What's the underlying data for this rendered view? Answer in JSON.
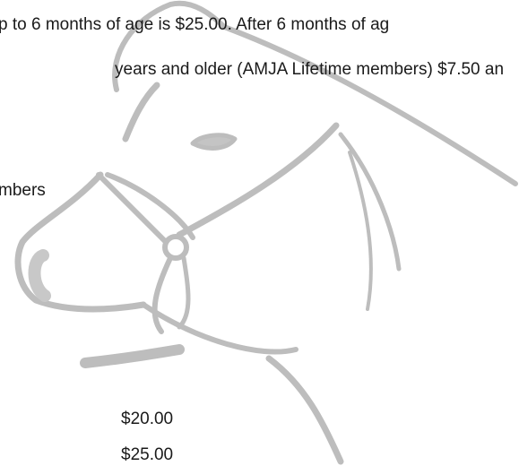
{
  "text_lines": [
    "p to 6 months of age is $25.00. After 6 months of ag",
    "years and older (AMJA Lifetime members) $7.50 an",
    "mbers"
  ],
  "fees": [
    "$20.00",
    "$25.00"
  ]
}
